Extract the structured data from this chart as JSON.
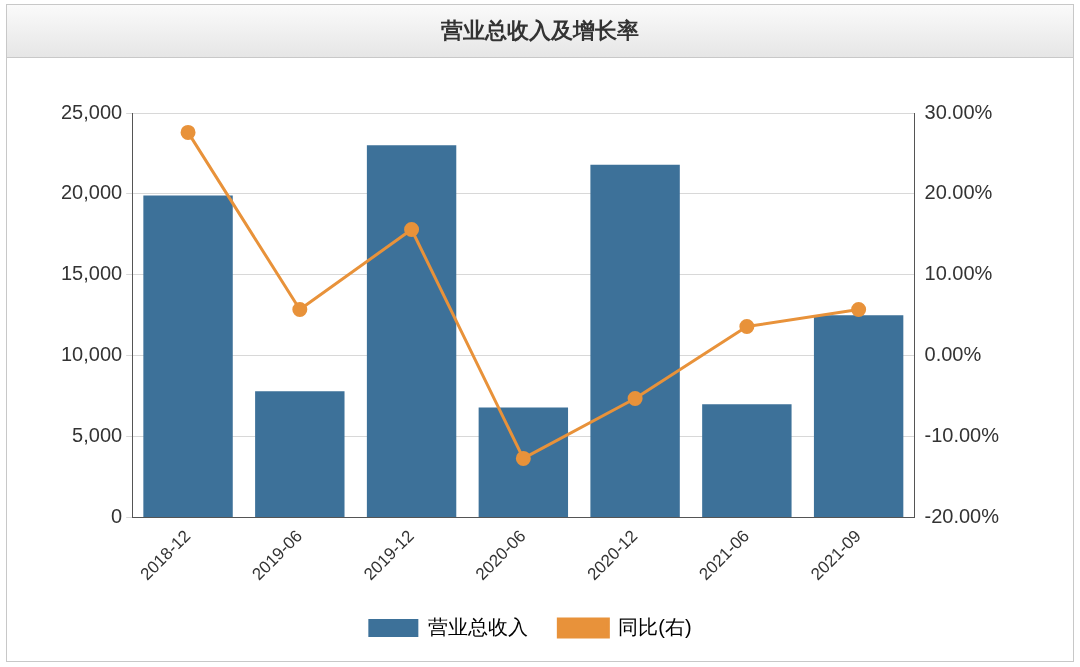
{
  "chart_data": {
    "type": "bar",
    "title": "营业总收入及增长率",
    "categories": [
      "2018-12",
      "2019-06",
      "2019-12",
      "2020-06",
      "2020-12",
      "2021-06",
      "2021-09"
    ],
    "series": [
      {
        "name": "营业总收入",
        "color": "#3d7199",
        "values": [
          19900,
          7800,
          23000,
          6800,
          21800,
          7000,
          12500
        ]
      },
      {
        "name": "同比(右)",
        "type": "line",
        "axis": "y2",
        "color": "#e8923a",
        "values": [
          27.6,
          5.7,
          15.6,
          -12.7,
          -5.3,
          3.6,
          5.7
        ]
      }
    ],
    "ylim": [
      0,
      25000
    ],
    "yticks": [
      {
        "value": 0,
        "label": "0"
      },
      {
        "value": 5000,
        "label": "5,000"
      },
      {
        "value": 10000,
        "label": "10,000"
      },
      {
        "value": 15000,
        "label": "15,000"
      },
      {
        "value": 20000,
        "label": "20,000"
      },
      {
        "value": 25000,
        "label": "25,000"
      }
    ],
    "y2lim": [
      -20,
      30
    ],
    "y2ticks": [
      {
        "value": -20,
        "label": "-20.00%"
      },
      {
        "value": -10,
        "label": "-10.00%"
      },
      {
        "value": 0,
        "label": "0.00%"
      },
      {
        "value": 10,
        "label": "10.00%"
      },
      {
        "value": 20,
        "label": "20.00%"
      },
      {
        "value": 30,
        "label": "30.00%"
      }
    ],
    "grid": "y",
    "legend": "bottom",
    "marker": "circle",
    "line_style": "solid"
  }
}
